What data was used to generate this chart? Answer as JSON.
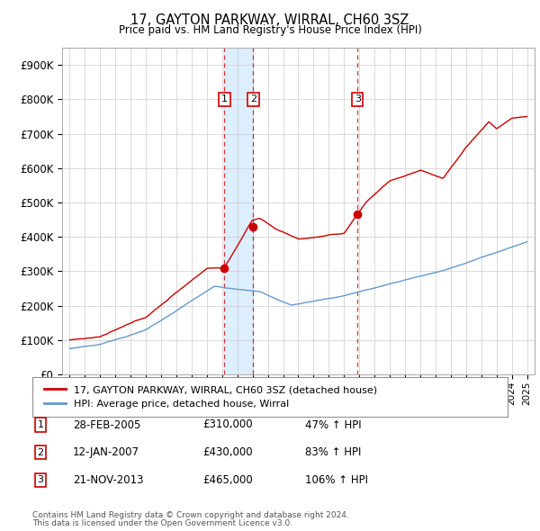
{
  "title1": "17, GAYTON PARKWAY, WIRRAL, CH60 3SZ",
  "title2": "Price paid vs. HM Land Registry's House Price Index (HPI)",
  "ylim": [
    0,
    950000
  ],
  "yticks": [
    0,
    100000,
    200000,
    300000,
    400000,
    500000,
    600000,
    700000,
    800000,
    900000
  ],
  "ytick_labels": [
    "£0",
    "£100K",
    "£200K",
    "£300K",
    "£400K",
    "£500K",
    "£600K",
    "£700K",
    "£800K",
    "£900K"
  ],
  "plot_bg_color": "#ffffff",
  "shade_color": "#ddeeff",
  "grid_color": "#cccccc",
  "sale_color": "#cc0000",
  "hpi_color": "#6699cc",
  "sale_label": "17, GAYTON PARKWAY, WIRRAL, CH60 3SZ (detached house)",
  "hpi_label": "HPI: Average price, detached house, Wirral",
  "transactions": [
    {
      "num": 1,
      "date": "28-FEB-2005",
      "price": "£310,000",
      "pct": "47% ↑ HPI",
      "x": 2005.15
    },
    {
      "num": 2,
      "date": "12-JAN-2007",
      "price": "£430,000",
      "pct": "83% ↑ HPI",
      "x": 2007.04
    },
    {
      "num": 3,
      "date": "21-NOV-2013",
      "price": "£465,000",
      "pct": "106% ↑ HPI",
      "x": 2013.88
    }
  ],
  "sale_prices": [
    310000,
    430000,
    465000
  ],
  "footer1": "Contains HM Land Registry data © Crown copyright and database right 2024.",
  "footer2": "This data is licensed under the Open Government Licence v3.0.",
  "xlim_start": 1994.5,
  "xlim_end": 2025.5
}
